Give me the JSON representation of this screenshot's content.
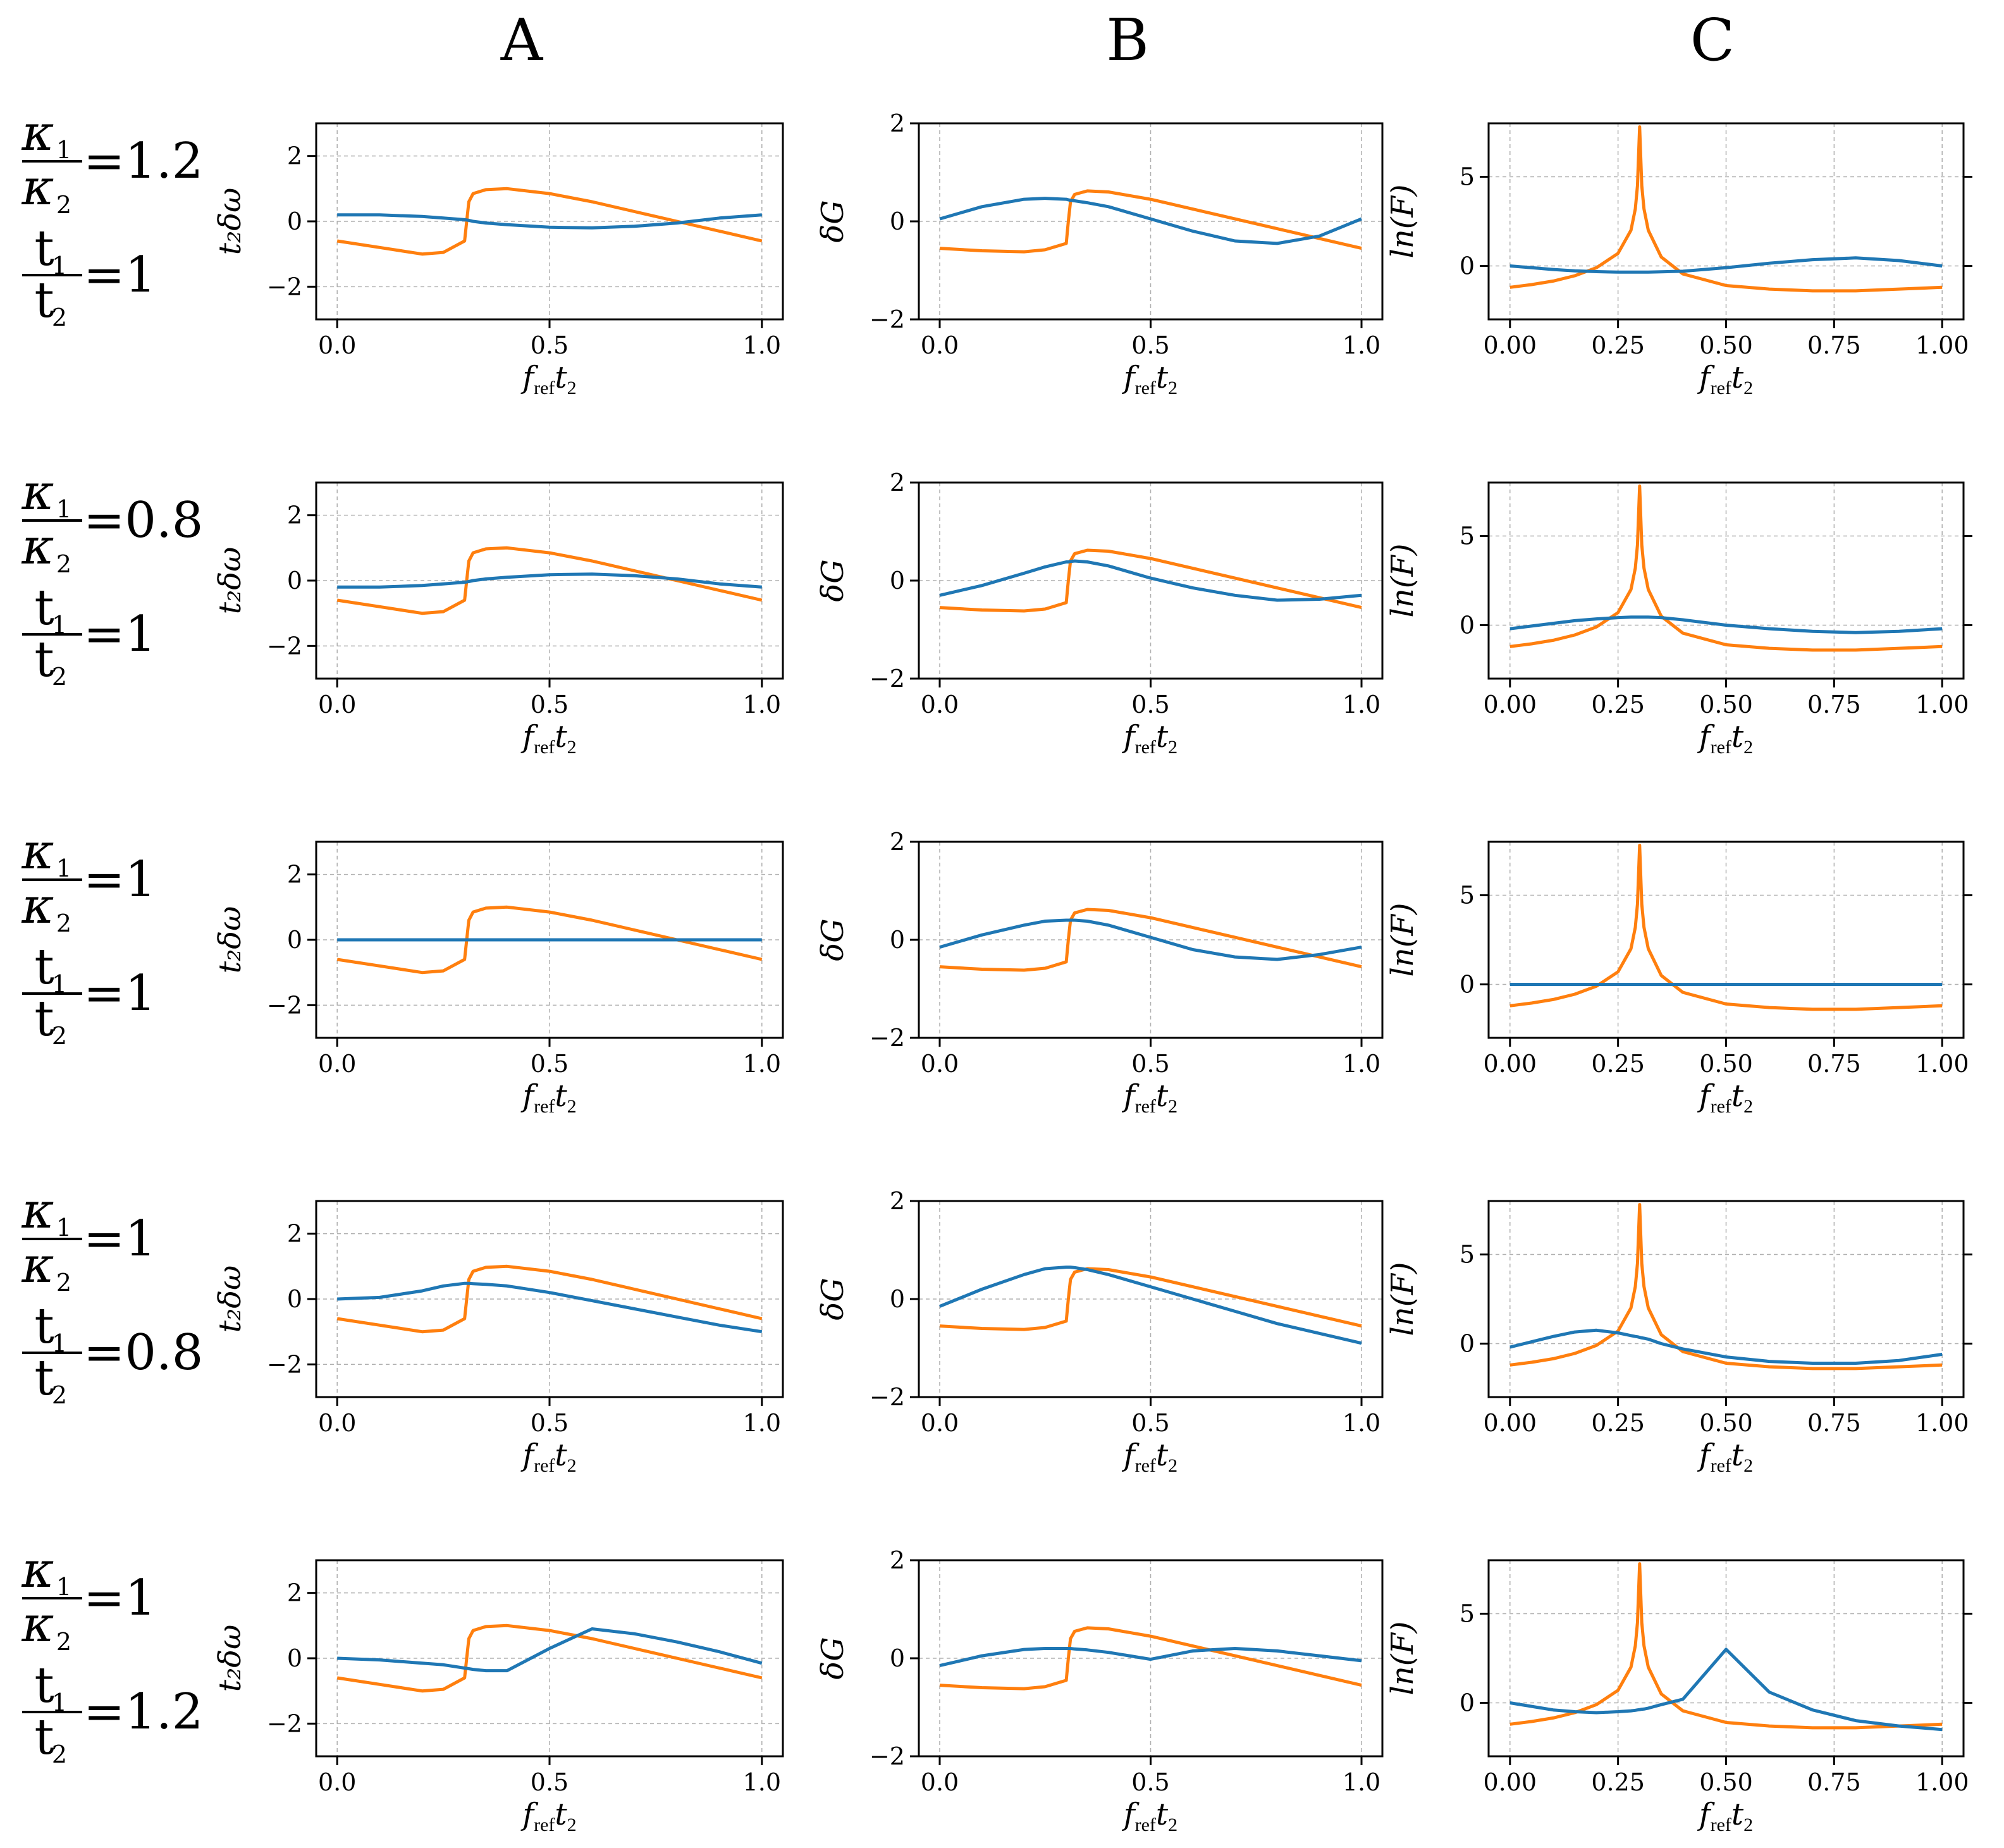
{
  "columns": [
    "A",
    "B",
    "C"
  ],
  "rows": [
    {
      "kappa_ratio": "=1.2",
      "t_ratio": "=1"
    },
    {
      "kappa_ratio": "=0.8",
      "t_ratio": "=1"
    },
    {
      "kappa_ratio": "=1",
      "t_ratio": "=1"
    },
    {
      "kappa_ratio": "=1",
      "t_ratio": "=0.8"
    },
    {
      "kappa_ratio": "=1",
      "t_ratio": "=1.2"
    }
  ],
  "row_label_symbols": {
    "kappa_num": "κ",
    "kappa_num_sub": "1",
    "kappa_den": "κ",
    "kappa_den_sub": "2",
    "t_num": "t",
    "t_num_sub": "1",
    "t_den": "t",
    "t_den_sub": "2"
  },
  "axis_labels": {
    "x": {
      "main": "f",
      "sub1": "ref",
      "var": "t",
      "sub2": "2"
    },
    "A_y": "t₂δω",
    "B_y": "δG",
    "C_y": "ln(F)"
  },
  "colors": {
    "series_1": "#1f77b4",
    "series_2": "#ff7f0e",
    "grid": "#b0b0b0",
    "axes": "#000000",
    "bg": "#ffffff"
  },
  "chart_data": [
    {
      "column": "A",
      "type": "line",
      "grid": true,
      "ylabel": "t₂δω",
      "xlim": [
        0,
        1
      ],
      "ylim": [
        -3,
        3
      ],
      "xticks": [
        "0.0",
        "0.5",
        "1.0"
      ],
      "yticks": [
        "−2",
        "0",
        "2"
      ],
      "x": [
        0,
        0.1,
        0.2,
        0.25,
        0.3,
        0.305,
        0.31,
        0.32,
        0.35,
        0.4,
        0.5,
        0.6,
        0.7,
        0.8,
        0.9,
        1.0
      ],
      "orange_reference": [
        -0.6,
        -0.8,
        -1.0,
        -0.95,
        -0.6,
        0.0,
        0.6,
        0.85,
        0.97,
        1.0,
        0.85,
        0.6,
        0.3,
        0.0,
        -0.3,
        -0.6
      ],
      "panels": [
        {
          "row": 1,
          "blue": [
            0.2,
            0.2,
            0.15,
            0.1,
            0.05,
            0.04,
            0.03,
            0.0,
            -0.05,
            -0.1,
            -0.18,
            -0.2,
            -0.15,
            -0.05,
            0.1,
            0.2
          ]
        },
        {
          "row": 2,
          "blue": [
            -0.2,
            -0.2,
            -0.15,
            -0.1,
            -0.05,
            -0.04,
            -0.03,
            0.0,
            0.05,
            0.1,
            0.18,
            0.2,
            0.15,
            0.05,
            -0.1,
            -0.2
          ]
        },
        {
          "row": 3,
          "blue": [
            0,
            0,
            0,
            0,
            0,
            0,
            0,
            0,
            0,
            0,
            0,
            0,
            0,
            0,
            0,
            0
          ]
        },
        {
          "row": 4,
          "blue": [
            0.0,
            0.05,
            0.25,
            0.4,
            0.48,
            0.48,
            0.48,
            0.47,
            0.45,
            0.4,
            0.2,
            -0.05,
            -0.3,
            -0.55,
            -0.8,
            -1.0
          ]
        },
        {
          "row": 5,
          "blue": [
            0.0,
            -0.05,
            -0.15,
            -0.2,
            -0.3,
            -0.31,
            -0.32,
            -0.34,
            -0.38,
            -0.38,
            0.3,
            0.9,
            0.75,
            0.5,
            0.2,
            -0.15
          ]
        }
      ]
    },
    {
      "column": "B",
      "type": "line",
      "grid": true,
      "ylabel": "δG",
      "xlim": [
        0,
        1
      ],
      "ylim": [
        -2,
        2
      ],
      "xticks": [
        "0.0",
        "0.5",
        "1.0"
      ],
      "yticks": [
        "−2",
        "0",
        "2"
      ],
      "x": [
        0,
        0.1,
        0.2,
        0.25,
        0.3,
        0.305,
        0.31,
        0.32,
        0.35,
        0.4,
        0.5,
        0.6,
        0.7,
        0.8,
        0.9,
        1.0
      ],
      "orange_reference": [
        -0.55,
        -0.6,
        -0.62,
        -0.58,
        -0.45,
        0.0,
        0.4,
        0.55,
        0.62,
        0.6,
        0.45,
        0.25,
        0.05,
        -0.15,
        -0.35,
        -0.55
      ],
      "panels": [
        {
          "row": 1,
          "blue": [
            0.05,
            0.3,
            0.45,
            0.47,
            0.45,
            0.44,
            0.43,
            0.42,
            0.38,
            0.3,
            0.05,
            -0.2,
            -0.4,
            -0.45,
            -0.3,
            0.05
          ]
        },
        {
          "row": 2,
          "blue": [
            -0.3,
            -0.1,
            0.15,
            0.28,
            0.38,
            0.38,
            0.39,
            0.4,
            0.38,
            0.3,
            0.05,
            -0.15,
            -0.3,
            -0.4,
            -0.38,
            -0.3
          ]
        },
        {
          "row": 3,
          "blue": [
            -0.15,
            0.1,
            0.3,
            0.38,
            0.4,
            0.4,
            0.4,
            0.4,
            0.38,
            0.3,
            0.05,
            -0.2,
            -0.35,
            -0.4,
            -0.3,
            -0.15
          ]
        },
        {
          "row": 4,
          "blue": [
            -0.15,
            0.2,
            0.5,
            0.62,
            0.65,
            0.65,
            0.65,
            0.64,
            0.6,
            0.5,
            0.25,
            0.0,
            -0.25,
            -0.5,
            -0.7,
            -0.9
          ]
        },
        {
          "row": 5,
          "blue": [
            -0.15,
            0.05,
            0.18,
            0.2,
            0.2,
            0.2,
            0.2,
            0.19,
            0.17,
            0.12,
            -0.02,
            0.15,
            0.2,
            0.15,
            0.05,
            -0.05
          ]
        }
      ]
    },
    {
      "column": "C",
      "type": "line",
      "grid": true,
      "ylabel": "ln(F)",
      "xlim": [
        0,
        1
      ],
      "ylim": [
        -3,
        8
      ],
      "xticks": [
        "0.00",
        "0.25",
        "0.50",
        "0.75",
        "1.00"
      ],
      "yticks": [
        "0",
        "5"
      ],
      "x": [
        0,
        0.05,
        0.1,
        0.15,
        0.2,
        0.25,
        0.28,
        0.29,
        0.295,
        0.3,
        0.305,
        0.31,
        0.32,
        0.35,
        0.4,
        0.5,
        0.6,
        0.7,
        0.8,
        0.9,
        1.0
      ],
      "orange_reference": [
        -1.2,
        -1.05,
        -0.85,
        -0.55,
        -0.1,
        0.7,
        2.0,
        3.2,
        4.5,
        7.8,
        4.5,
        3.2,
        2.0,
        0.5,
        -0.45,
        -1.1,
        -1.3,
        -1.4,
        -1.4,
        -1.3,
        -1.2
      ],
      "panels": [
        {
          "row": 1,
          "blue": [
            0.0,
            -0.1,
            -0.2,
            -0.28,
            -0.32,
            -0.35,
            -0.35,
            -0.35,
            -0.35,
            -0.35,
            -0.35,
            -0.35,
            -0.35,
            -0.33,
            -0.3,
            -0.1,
            0.15,
            0.35,
            0.45,
            0.3,
            0.0
          ]
        },
        {
          "row": 2,
          "blue": [
            -0.2,
            -0.05,
            0.1,
            0.25,
            0.35,
            0.42,
            0.45,
            0.45,
            0.45,
            0.45,
            0.45,
            0.45,
            0.45,
            0.42,
            0.3,
            0.0,
            -0.2,
            -0.35,
            -0.42,
            -0.35,
            -0.2
          ]
        },
        {
          "row": 3,
          "blue": [
            0,
            0,
            0,
            0,
            0,
            0,
            0,
            0,
            0,
            0,
            0,
            0,
            0,
            0,
            0,
            0,
            0,
            0,
            0,
            0,
            0
          ]
        },
        {
          "row": 4,
          "blue": [
            -0.2,
            0.1,
            0.4,
            0.65,
            0.75,
            0.6,
            0.45,
            0.4,
            0.38,
            0.35,
            0.32,
            0.3,
            0.25,
            0.0,
            -0.3,
            -0.75,
            -1.0,
            -1.1,
            -1.1,
            -0.95,
            -0.6
          ]
        },
        {
          "row": 5,
          "blue": [
            0.0,
            -0.2,
            -0.4,
            -0.5,
            -0.55,
            -0.5,
            -0.45,
            -0.42,
            -0.4,
            -0.38,
            -0.36,
            -0.35,
            -0.3,
            -0.1,
            0.2,
            3.0,
            0.6,
            -0.4,
            -1.0,
            -1.3,
            -1.5
          ]
        }
      ]
    }
  ]
}
